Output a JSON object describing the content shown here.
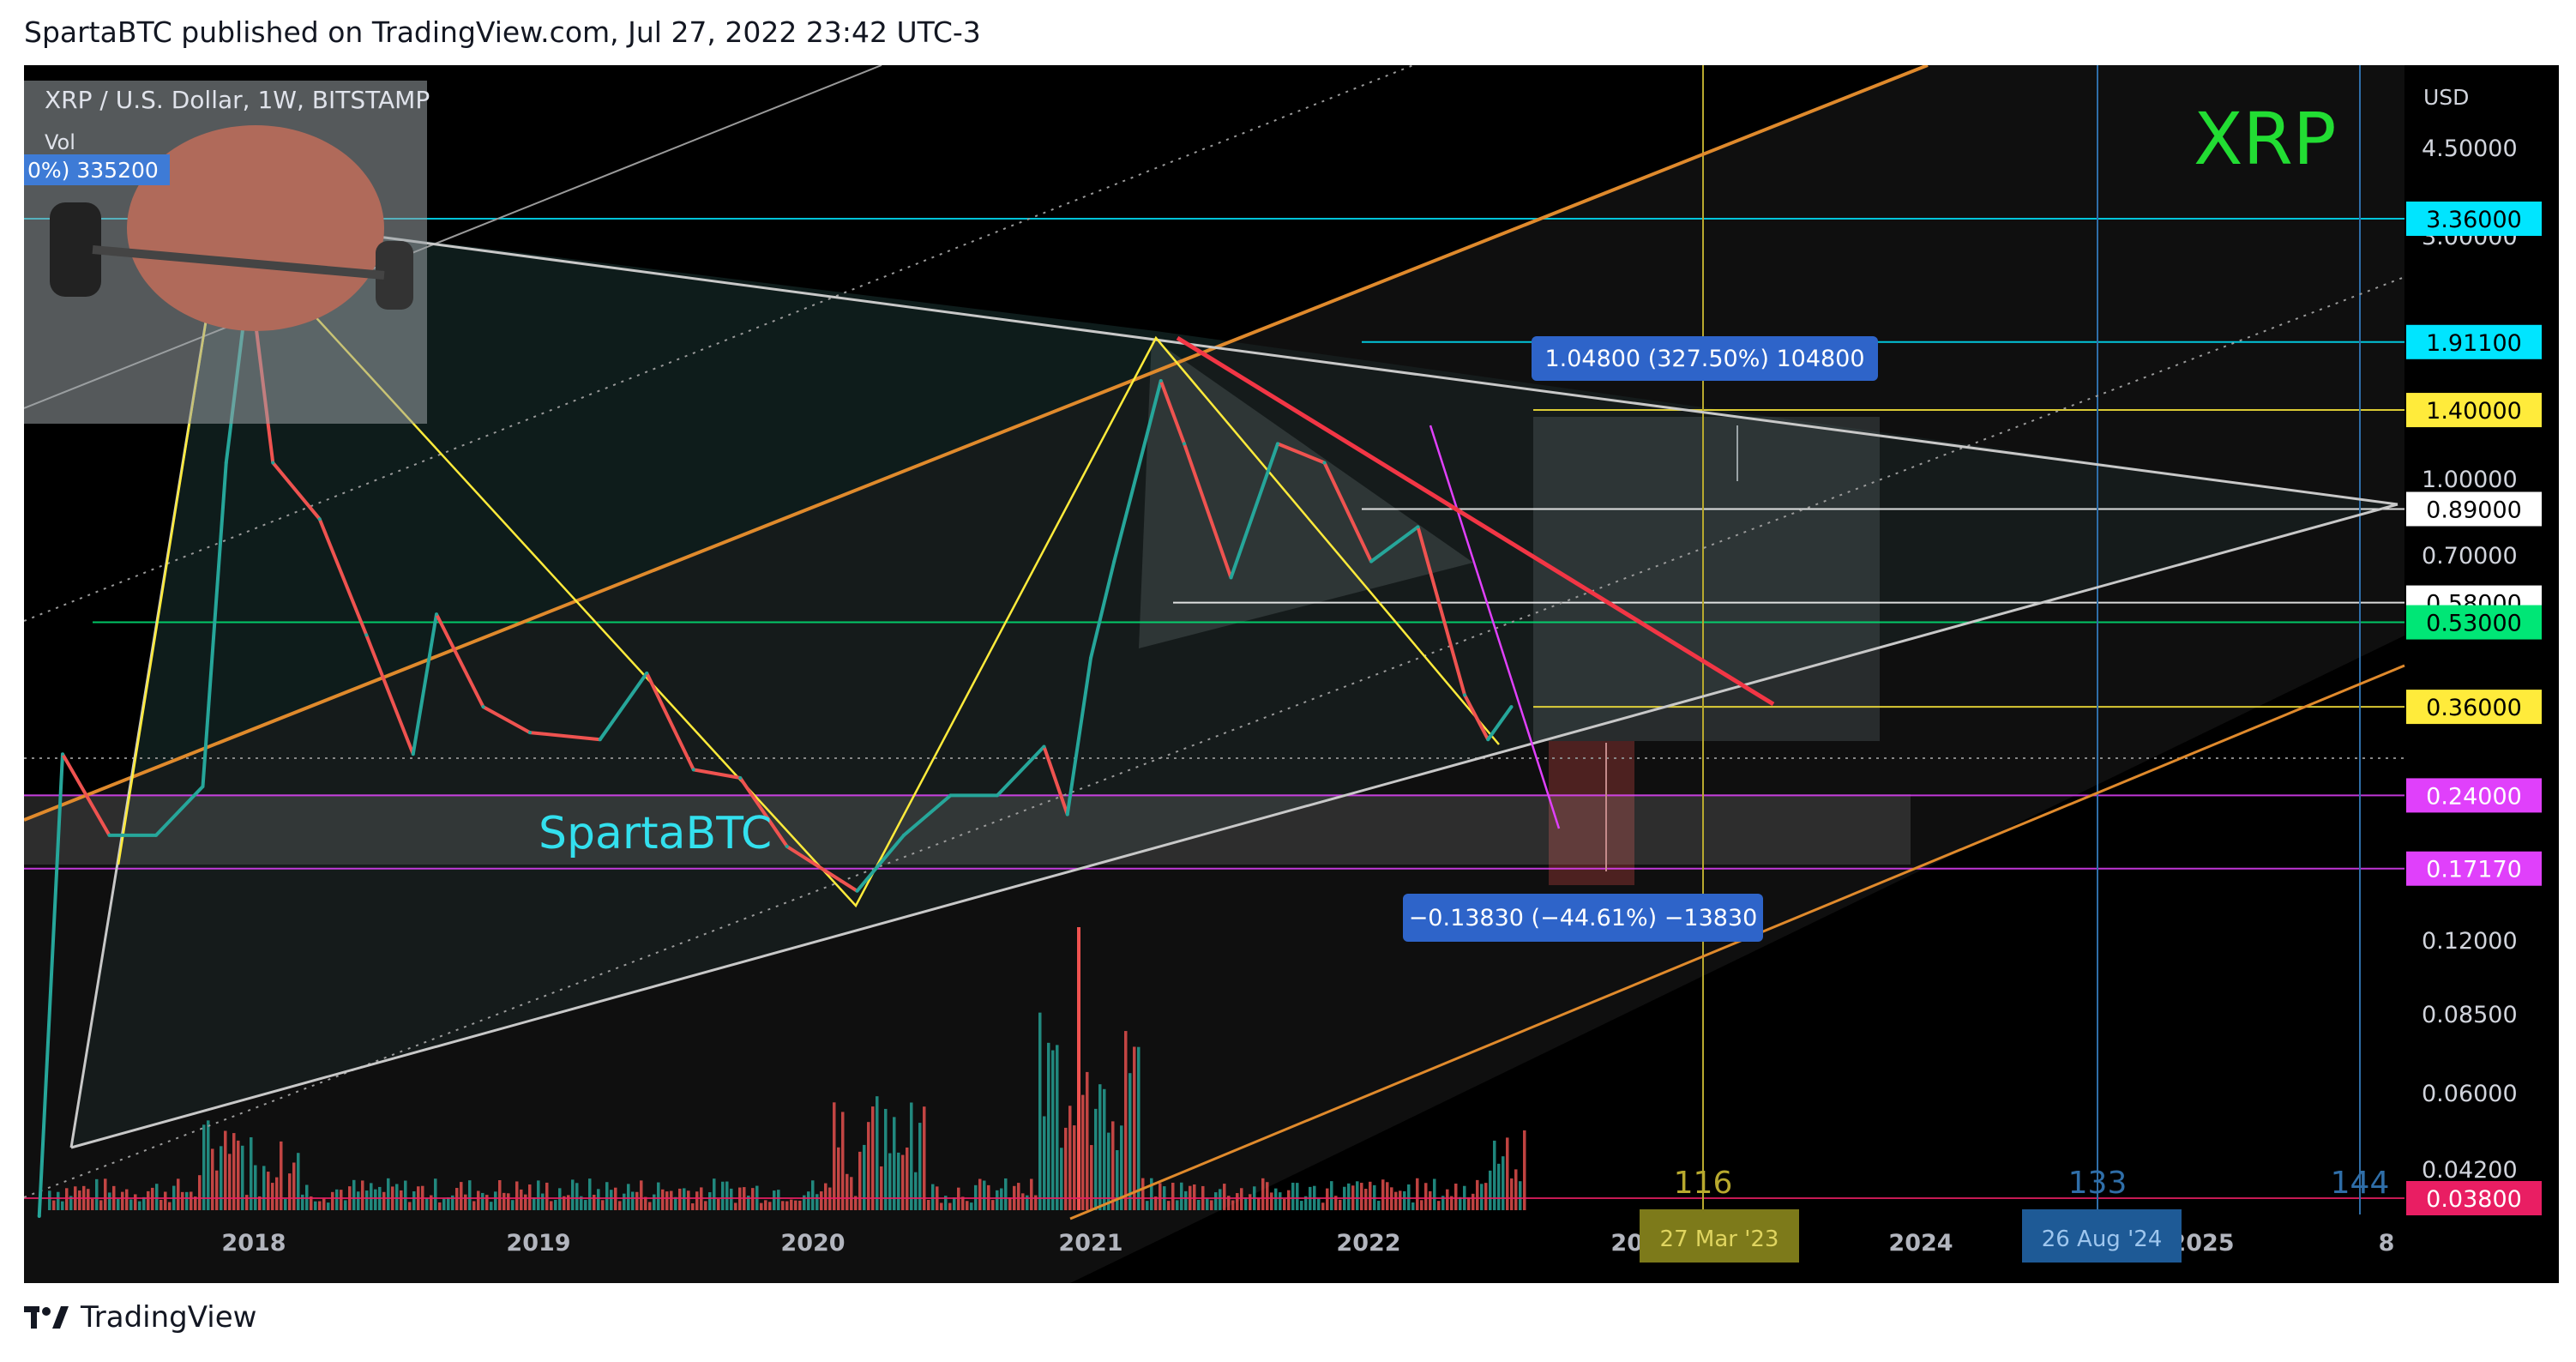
{
  "header": {
    "text": "SpartaBTC published on TradingView.com, Jul 27, 2022 23:42 UTC-3"
  },
  "footer": {
    "brand": "TradingView",
    "logo_icon": "tradingview-logo-icon"
  },
  "symbol": {
    "title": "XRP / U.S. Dollar, 1W, BITSTAMP",
    "vol_label": "Vol",
    "vol_value": "0%) 335200"
  },
  "watermark": {
    "big": "XRP",
    "author": "SpartaBTC"
  },
  "colors": {
    "background": "#000000",
    "bull": "#26a69a",
    "bear": "#ef5350",
    "channel": "#e08a2c",
    "wedge": "#c8c8c8",
    "zigzag": "#ffeb3b",
    "trendline": "#f23645",
    "xrp_text": "#22dd33",
    "author_text": "#33e0ee"
  },
  "axis": {
    "currency": "USD",
    "price_labels": [
      "4.50000",
      "3.00000",
      "1.00000",
      "0.70000",
      "0.12000",
      "0.08500",
      "0.06000",
      "0.04200"
    ],
    "badges": [
      {
        "label": "3.36000",
        "bg": "#00e5ff",
        "fg": "#000000"
      },
      {
        "label": "1.91100",
        "bg": "#00e5ff",
        "fg": "#000000"
      },
      {
        "label": "1.40000",
        "bg": "#ffeb3b",
        "fg": "#000000"
      },
      {
        "label": "0.89000",
        "bg": "#ffffff",
        "fg": "#000000"
      },
      {
        "label": "0.58000",
        "bg": "#ffffff",
        "fg": "#000000"
      },
      {
        "label": "0.53000",
        "bg": "#00e676",
        "fg": "#000000"
      },
      {
        "label": "0.36000",
        "bg": "#ffeb3b",
        "fg": "#000000"
      },
      {
        "label": "0.24000",
        "bg": "#e040fb",
        "fg": "#ffffff"
      },
      {
        "label": "0.17170",
        "bg": "#e040fb",
        "fg": "#ffffff"
      },
      {
        "label": "0.03800",
        "bg": "#e91e63",
        "fg": "#ffffff"
      }
    ],
    "time_labels": [
      "2018",
      "2019",
      "2020",
      "2021",
      "2022",
      "2023",
      "2024",
      "2025",
      "8"
    ],
    "time_badges": [
      {
        "label": "27 Mar '23",
        "bg": "#7d7a1a",
        "fg": "#e0d560"
      },
      {
        "label": "26 Aug '24",
        "bg": "#1e5a96",
        "fg": "#9ec6ee"
      }
    ],
    "fib_numbers": [
      {
        "label": "116",
        "color": "#b8a92e"
      },
      {
        "label": "133",
        "color": "#2f6ea8"
      },
      {
        "label": "144",
        "color": "#2f6ea8"
      }
    ]
  },
  "annotations": {
    "long": "1.04800 (327.50%) 104800",
    "short": "−0.13830 (−44.61%) −13830"
  },
  "chart_data": {
    "type": "line",
    "title": "XRP / U.S. Dollar, 1W, BITSTAMP",
    "ylabel": "USD",
    "y_scale": "log",
    "x": [
      "2017-04",
      "2017-05",
      "2017-07",
      "2017-09",
      "2017-11",
      "2017-12",
      "2018-01",
      "2018-02",
      "2018-04",
      "2018-06",
      "2018-08",
      "2018-09",
      "2018-11",
      "2019-01",
      "2019-04",
      "2019-06",
      "2019-08",
      "2019-10",
      "2019-12",
      "2020-03",
      "2020-05",
      "2020-07",
      "2020-09",
      "2020-11",
      "2020-12",
      "2021-01",
      "2021-02",
      "2021-04",
      "2021-05",
      "2021-07",
      "2021-09",
      "2021-11",
      "2022-01",
      "2022-03",
      "2022-05",
      "2022-06",
      "2022-07"
    ],
    "values": [
      0.035,
      0.29,
      0.2,
      0.2,
      0.25,
      1.1,
      2.6,
      1.1,
      0.85,
      0.5,
      0.29,
      0.55,
      0.36,
      0.32,
      0.31,
      0.42,
      0.27,
      0.26,
      0.19,
      0.155,
      0.2,
      0.24,
      0.24,
      0.3,
      0.22,
      0.45,
      0.7,
      1.6,
      1.2,
      0.65,
      1.2,
      1.1,
      0.7,
      0.82,
      0.38,
      0.31,
      0.36
    ],
    "levels": [
      3.36,
      1.911,
      1.4,
      0.89,
      0.58,
      0.53,
      0.36,
      0.24,
      0.1717,
      0.038
    ],
    "grid": false
  }
}
